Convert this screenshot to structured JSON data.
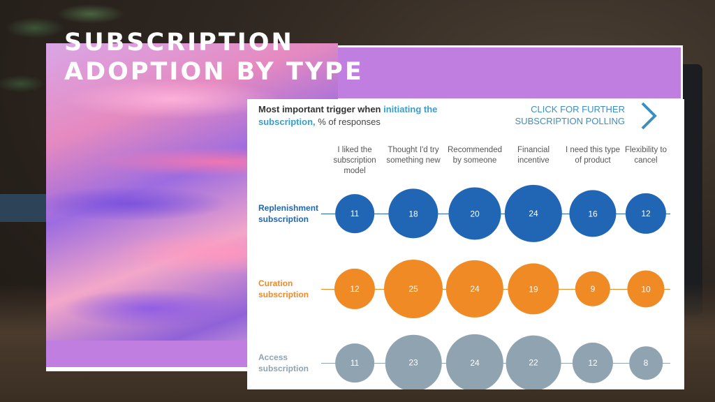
{
  "slide": {
    "title_line1": "SUBSCRIPTION",
    "title_line2": "ADOPTION BY TYPE"
  },
  "panel": {
    "heading_bold": "Most important trigger when",
    "heading_highlight": "initiating the subscription,",
    "heading_rest": "% of responses",
    "cta_label": "CLICK FOR FURTHER SUBSCRIPTION POLLING",
    "cta_icon": "chevron-right-icon"
  },
  "colors": {
    "replenishment": "#2166b5",
    "curation": "#f08a24",
    "access": "#8fa3b1",
    "highlight": "#3a9ec9",
    "purple": "#c07ee0"
  },
  "chart_data": {
    "type": "bubble-matrix",
    "unit": "% of responses",
    "columns": [
      "I liked the subscription model",
      "Thought I'd try something new",
      "Recommended by someone",
      "Financial incentive",
      "I need this type of product",
      "Flexibility to cancel"
    ],
    "series": [
      {
        "name": "Replenishment subscription",
        "values": [
          11,
          18,
          20,
          24,
          16,
          12
        ]
      },
      {
        "name": "Curation subscription",
        "values": [
          12,
          25,
          24,
          19,
          9,
          10
        ]
      },
      {
        "name": "Access subscription",
        "values": [
          11,
          23,
          24,
          22,
          12,
          8
        ]
      }
    ]
  }
}
